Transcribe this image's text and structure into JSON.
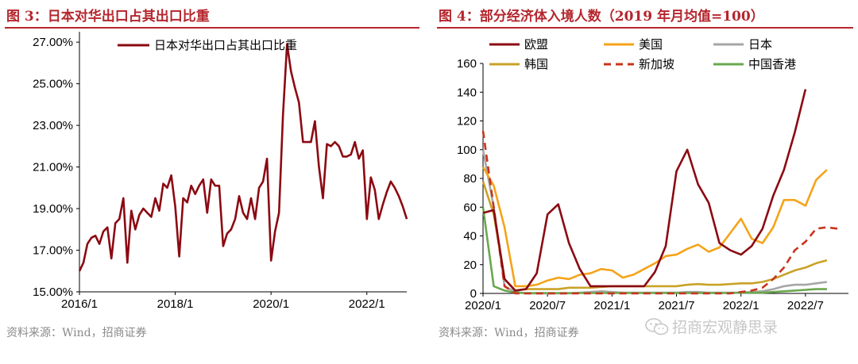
{
  "left": {
    "title": "图 3：日本对华出口占其出口比重",
    "source": "资料来源：Wind，招商证券"
  },
  "right": {
    "title": "图 4：部分经济体入境人数（2019 年月均值=100）",
    "source": "资料来源：Wind，招商证券"
  },
  "watermark": {
    "text": "招商宏观静思录",
    "icon": "wechat-icon"
  },
  "colors": {
    "accent": "#b5262d",
    "eu": "#8b0a12",
    "us": "#f5a31a",
    "japan": "#a6a6a6",
    "korea": "#c9a227",
    "singapore": "#c8341c",
    "hongkong": "#6aa84f"
  },
  "chart_data": [
    {
      "type": "line",
      "title": "",
      "xlabel": "",
      "ylabel": "",
      "x_ticks": [
        "2016/1",
        "2018/1",
        "2020/1",
        "2022/1"
      ],
      "y_ticks": [
        "15.00%",
        "17.00%",
        "19.00%",
        "21.00%",
        "23.00%",
        "25.00%",
        "27.00%"
      ],
      "ylim": [
        15,
        27.5
      ],
      "y_unit": "%",
      "x_start": "2016/1",
      "frequency": "monthly",
      "legend_position": "top-center",
      "series": [
        {
          "name": "日本对华出口占其出口比重",
          "color": "#8b0a12",
          "values": [
            16.0,
            16.4,
            17.3,
            17.6,
            17.7,
            17.3,
            17.9,
            18.1,
            16.6,
            18.3,
            18.5,
            19.5,
            16.4,
            18.9,
            18.0,
            18.7,
            19.0,
            18.8,
            18.6,
            19.5,
            18.9,
            20.2,
            20.0,
            20.6,
            19.1,
            16.7,
            19.5,
            19.3,
            20.1,
            19.7,
            20.1,
            20.4,
            18.8,
            20.4,
            20.1,
            20.1,
            17.2,
            17.8,
            18.0,
            18.5,
            19.6,
            18.8,
            18.5,
            19.5,
            18.5,
            20.0,
            20.3,
            21.4,
            16.5,
            17.9,
            18.8,
            23.5,
            26.9,
            25.6,
            24.8,
            24.1,
            22.2,
            22.2,
            22.2,
            23.2,
            21.0,
            19.5,
            22.1,
            22.0,
            22.2,
            22.0,
            21.5,
            21.5,
            21.6,
            22.2,
            21.4,
            21.8,
            18.5,
            20.5,
            19.9,
            18.5,
            19.2,
            19.8,
            20.3,
            20.0,
            19.6,
            19.1,
            18.5
          ]
        }
      ]
    },
    {
      "type": "line",
      "title": "",
      "xlabel": "",
      "ylabel": "",
      "x_ticks": [
        "2020/1",
        "2020/7",
        "2021/1",
        "2021/7",
        "2022/1",
        "2022/7"
      ],
      "y_ticks": [
        "0",
        "20",
        "40",
        "60",
        "80",
        "100",
        "120",
        "140",
        "160"
      ],
      "ylim": [
        0,
        160
      ],
      "x_start": "2020/1",
      "frequency": "monthly",
      "legend_position": "top",
      "series": [
        {
          "name": "欧盟",
          "color": "#8b0a12",
          "dash": false,
          "values": [
            56,
            58,
            10,
            2,
            3,
            14,
            55,
            62,
            35,
            17,
            5,
            5,
            5,
            5,
            5,
            5,
            15,
            33,
            85,
            100,
            76,
            63,
            35,
            30,
            27,
            33,
            45,
            68,
            86,
            112,
            142
          ]
        },
        {
          "name": "美国",
          "color": "#f5a31a",
          "dash": false,
          "values": [
            88,
            75,
            46,
            5,
            5,
            6,
            9,
            11,
            10,
            13,
            14,
            17,
            16,
            11,
            13,
            17,
            21,
            26,
            27,
            31,
            34,
            29,
            32,
            42,
            52,
            38,
            35,
            46,
            65,
            65,
            61,
            79,
            86
          ]
        },
        {
          "name": "日本",
          "color": "#a6a6a6",
          "dash": false,
          "values": [
            100,
            60,
            5,
            1,
            0,
            0,
            0,
            0,
            0,
            0.5,
            1,
            1.5,
            1,
            0.5,
            0.5,
            0.5,
            0.5,
            0.5,
            0.5,
            1,
            1,
            0.5,
            0.5,
            0.5,
            0.5,
            1,
            1.5,
            3,
            5,
            6,
            6,
            7,
            8
          ]
        },
        {
          "name": "韩国",
          "color": "#c9a227",
          "dash": false,
          "values": [
            78,
            55,
            10,
            2,
            3,
            3,
            3,
            3,
            4,
            4,
            4,
            4.5,
            5,
            5,
            5,
            5,
            5,
            5,
            5,
            6,
            6.5,
            6,
            6,
            6.5,
            7,
            7,
            8,
            10,
            13,
            16,
            18,
            21,
            23
          ]
        },
        {
          "name": "新加坡",
          "color": "#c8341c",
          "dash": true,
          "values": [
            113,
            60,
            5,
            0,
            0,
            0,
            0,
            0,
            0,
            0,
            0,
            0,
            0,
            0,
            0,
            0,
            0,
            0,
            0,
            0,
            0,
            0,
            0,
            0,
            1,
            2,
            4,
            10,
            18,
            30,
            36,
            45,
            46,
            45
          ]
        },
        {
          "name": "中国香港",
          "color": "#6aa84f",
          "dash": false,
          "values": [
            60,
            5,
            2,
            0.5,
            0.3,
            0.3,
            0.3,
            0.3,
            0.3,
            0.3,
            0.3,
            0.3,
            0.3,
            0.3,
            0.3,
            0.3,
            0.3,
            0.3,
            0.3,
            0.3,
            0.3,
            0.3,
            0.3,
            0.3,
            0.5,
            0.5,
            0.5,
            1,
            1.5,
            2,
            2.5,
            3,
            3
          ]
        }
      ]
    }
  ]
}
